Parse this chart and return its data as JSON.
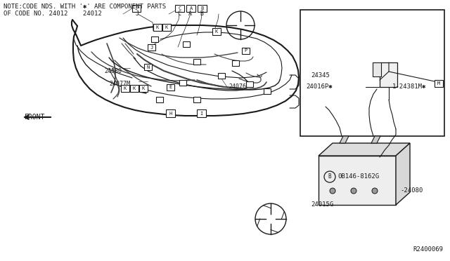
{
  "bg_color": "#ffffff",
  "dark_color": "#1a1a1a",
  "line_color": "#444444",
  "gray_color": "#888888",
  "note_line1": "NOTE:CODE NDS. WITH '*' ARE COMPONENT PARTS",
  "note_line2": "OF CODE NO. 24012    24012",
  "diagram_ref": "R2400069",
  "fig_width": 6.4,
  "fig_height": 3.72,
  "dpi": 100
}
